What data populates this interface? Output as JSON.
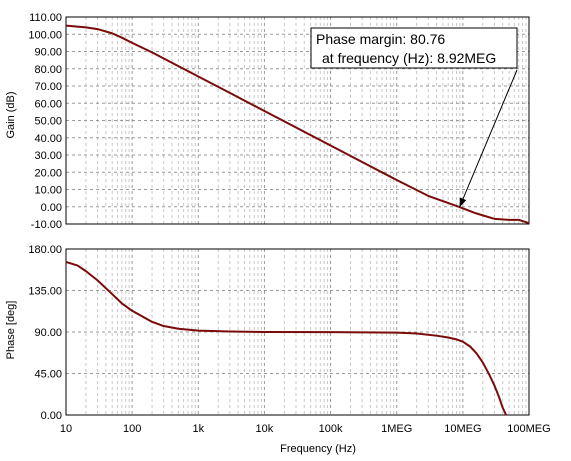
{
  "chart_data": [
    {
      "type": "line",
      "panel": "gain",
      "ylabel": "Gain (dB)",
      "xscale": "log",
      "xlim": [
        10,
        100000000
      ],
      "ylim": [
        -10,
        110
      ],
      "yticks": [
        "110.00",
        "100.00",
        "90.00",
        "80.00",
        "70.00",
        "60.00",
        "50.00",
        "40.00",
        "30.00",
        "20.00",
        "10.00",
        "0.00",
        "-10.00"
      ],
      "ytick_values": [
        110,
        100,
        90,
        80,
        70,
        60,
        50,
        40,
        30,
        20,
        10,
        0,
        -10
      ],
      "grid": true,
      "series": [
        {
          "color": "#7b0a0a",
          "x": [
            10,
            20,
            30,
            50,
            70,
            100,
            200,
            500,
            1000,
            3000,
            10000,
            100000,
            1000000,
            3000000,
            8920000,
            15000000,
            20000000,
            30000000,
            50000000,
            70000000,
            100000000
          ],
          "y": [
            105,
            104,
            103,
            100.5,
            98,
            95,
            89.5,
            81.5,
            75.5,
            66,
            55.5,
            35.5,
            15.5,
            6.3,
            -0.2,
            -3.5,
            -5.0,
            -7.0,
            -7.6,
            -7.6,
            -9.5
          ]
        }
      ],
      "annotation": {
        "lines": [
          "Phase margin: 80.76",
          "at frequency (Hz): 8.92MEG"
        ],
        "x": 8920000,
        "y": -0.2
      }
    },
    {
      "type": "line",
      "panel": "phase",
      "ylabel": "Phase [deg]",
      "xlabel": "Frequency (Hz)",
      "xscale": "log",
      "xlim": [
        10,
        100000000
      ],
      "ylim": [
        0,
        180
      ],
      "yticks": [
        "180.00",
        "135.00",
        "90.00",
        "45.00",
        "0.00"
      ],
      "ytick_values": [
        180,
        135,
        90,
        45,
        0
      ],
      "xticks": [
        "10",
        "100",
        "1k",
        "10k",
        "100k",
        "1MEG",
        "10MEG",
        "100MEG"
      ],
      "xtick_values": [
        10,
        100,
        1000,
        10000,
        100000,
        1000000,
        10000000,
        100000000
      ],
      "grid": true,
      "series": [
        {
          "color": "#7b0a0a",
          "x": [
            10,
            15,
            20,
            30,
            50,
            70,
            100,
            150,
            200,
            300,
            500,
            1000,
            3000,
            10000,
            100000,
            1000000,
            2000000,
            4000000,
            6000000,
            8000000,
            10000000,
            13000000,
            16000000,
            20000000,
            25000000,
            30000000,
            35000000,
            40000000,
            45000000
          ],
          "y": [
            166,
            162,
            156,
            146,
            131,
            121,
            113,
            106,
            101,
            96.5,
            93.5,
            91.5,
            90.5,
            90,
            89.8,
            89.3,
            88.4,
            86,
            84,
            82,
            79.5,
            74,
            67,
            57,
            44,
            32,
            20,
            8,
            0
          ]
        }
      ]
    }
  ]
}
